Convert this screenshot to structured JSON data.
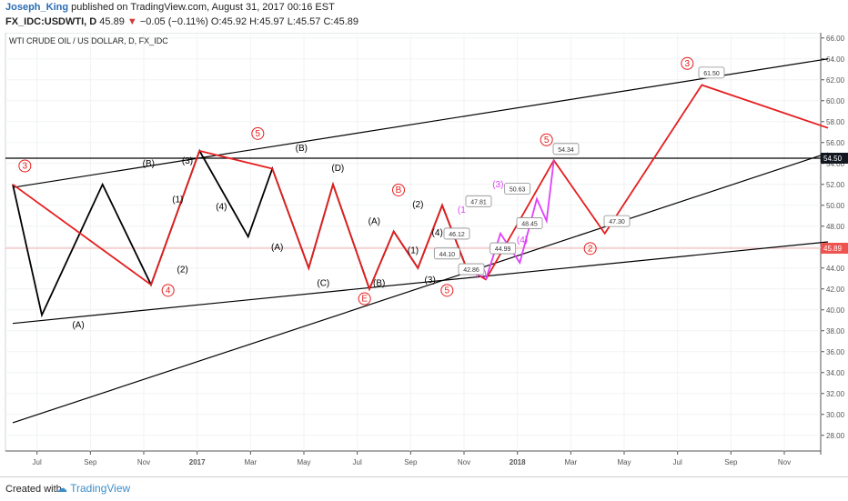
{
  "header": {
    "author": "Joseph_King",
    "published": "published on TradingView.com, August 31, 2017 00:16 EST",
    "symbol": "FX_IDC:USDWTI, D",
    "last": "45.89",
    "change_arrow": "▼",
    "change": "−0.05 (−0.11%)",
    "ohlc": "O:45.92 H:45.97 L:45.57 C:45.89"
  },
  "chart_data": {
    "type": "line",
    "title": "WTI CRUDE OIL / US DOLLAR, D, FX_IDC",
    "xlabel": "",
    "ylabel": "",
    "x_ticks": [
      "Jul",
      "Sep",
      "Nov",
      "2017",
      "Mar",
      "May",
      "Jul",
      "Sep",
      "Nov",
      "2018",
      "Mar",
      "May",
      "Jul",
      "Sep",
      "Nov"
    ],
    "y_ticks": [
      "66.00",
      "64.00",
      "62.00",
      "60.00",
      "58.00",
      "56.00",
      "54.00",
      "52.00",
      "50.00",
      "48.00",
      "46.00",
      "44.00",
      "42.00",
      "40.00",
      "38.00",
      "36.00",
      "34.00",
      "32.00",
      "30.00",
      "28.00"
    ],
    "ylim": [
      26.5,
      66.5
    ],
    "price_labels": [
      {
        "value": 54.5,
        "text": "54.50",
        "color": "#131722"
      },
      {
        "value": 45.89,
        "text": "45.89",
        "color": "#ef5350"
      }
    ],
    "horizontal_line": 54.5,
    "current_price": 45.89,
    "series": [
      {
        "color": "#000000",
        "points": [
          [
            0,
            52
          ],
          [
            1.2,
            39.5
          ],
          [
            3.7,
            52
          ],
          [
            5.7,
            42.4
          ],
          [
            7.7,
            55.2
          ],
          [
            9.7,
            47
          ],
          [
            10.7,
            53.5
          ],
          [
            12.2,
            44
          ],
          [
            13.2,
            52
          ],
          [
            14.7,
            42
          ],
          [
            15.7,
            47.5
          ],
          [
            16.7,
            44
          ],
          [
            17.7,
            50
          ],
          [
            18.7,
            44
          ]
        ]
      },
      {
        "color": "#e51e1e",
        "points": [
          [
            0,
            52
          ],
          [
            5.7,
            42.4
          ],
          [
            7.7,
            55.2
          ],
          [
            10.7,
            53.5
          ],
          [
            12.2,
            44
          ],
          [
            13.2,
            52
          ],
          [
            14.7,
            42
          ],
          [
            15.7,
            47.5
          ],
          [
            16.7,
            44
          ],
          [
            17.7,
            50
          ],
          [
            18.7,
            44
          ],
          [
            19.5,
            42.9
          ],
          [
            22.3,
            54.3
          ],
          [
            24.4,
            47.3
          ],
          [
            28.4,
            61.5
          ],
          [
            33.6,
            57.4
          ]
        ]
      },
      {
        "color": "#e040fb",
        "points": [
          [
            19.5,
            42.9
          ],
          [
            20.1,
            47.3
          ],
          [
            20.9,
            44.5
          ],
          [
            21.6,
            50.6
          ],
          [
            22.0,
            48.5
          ],
          [
            22.3,
            54.3
          ]
        ]
      }
    ],
    "trendlines": [
      {
        "points": [
          [
            0,
            51.7
          ],
          [
            33.6,
            64
          ]
        ]
      },
      {
        "points": [
          [
            0,
            38.7
          ],
          [
            33.6,
            46.5
          ]
        ]
      },
      {
        "points": [
          [
            0,
            29.2
          ],
          [
            33.6,
            55
          ]
        ]
      }
    ],
    "wave_labels": [
      {
        "text": "3",
        "x": 0.5,
        "y": 53.5,
        "color": "#e51e1e",
        "circle": true
      },
      {
        "text": "(A)",
        "x": 2.7,
        "y": 38.3,
        "color": "#000000"
      },
      {
        "text": "(B)",
        "x": 5.6,
        "y": 53.7,
        "color": "#000000"
      },
      {
        "text": "(1)",
        "x": 6.8,
        "y": 50.3,
        "color": "#000000"
      },
      {
        "text": "(2)",
        "x": 7.0,
        "y": 43.6,
        "color": "#000000"
      },
      {
        "text": "4",
        "x": 6.4,
        "y": 41.6,
        "color": "#e51e1e",
        "circle": true
      },
      {
        "text": "(3)",
        "x": 7.2,
        "y": 54.0,
        "color": "#000000"
      },
      {
        "text": "(4)",
        "x": 8.6,
        "y": 49.6,
        "color": "#000000"
      },
      {
        "text": "5",
        "x": 10.1,
        "y": 56.6,
        "color": "#e51e1e",
        "circle": true
      },
      {
        "text": "(A)",
        "x": 10.9,
        "y": 45.7,
        "color": "#000000"
      },
      {
        "text": "(B)",
        "x": 11.9,
        "y": 55.2,
        "color": "#000000"
      },
      {
        "text": "(C)",
        "x": 12.8,
        "y": 42.3,
        "color": "#000000"
      },
      {
        "text": "(D)",
        "x": 13.4,
        "y": 53.3,
        "color": "#000000"
      },
      {
        "text": "(A)",
        "x": 14.9,
        "y": 48.2,
        "color": "#000000"
      },
      {
        "text": "(B)",
        "x": 15.1,
        "y": 42.3,
        "color": "#000000"
      },
      {
        "text": "E",
        "x": 14.5,
        "y": 40.8,
        "color": "#e51e1e",
        "circle": true
      },
      {
        "text": "B",
        "x": 15.9,
        "y": 51.2,
        "color": "#e51e1e",
        "circle": true
      },
      {
        "text": "(2)",
        "x": 16.7,
        "y": 49.8,
        "color": "#000000"
      },
      {
        "text": "(1)",
        "x": 16.5,
        "y": 45.4,
        "color": "#000000"
      },
      {
        "text": "(4)",
        "x": 17.5,
        "y": 47.1,
        "color": "#000000"
      },
      {
        "text": "(3)",
        "x": 17.2,
        "y": 42.6,
        "color": "#000000"
      },
      {
        "text": "5",
        "x": 17.9,
        "y": 41.6,
        "color": "#e51e1e",
        "circle": true
      },
      {
        "text": "(1",
        "x": 18.5,
        "y": 49.3,
        "color": "#e040fb"
      },
      {
        "text": "(2)",
        "x": 19.3,
        "y": 43.2,
        "color": "#e040fb"
      },
      {
        "text": "(3)",
        "x": 20.0,
        "y": 51.7,
        "color": "#e040fb"
      },
      {
        "text": "(4)",
        "x": 21.0,
        "y": 46.4,
        "color": "#e040fb"
      },
      {
        "text": "5",
        "x": 22.0,
        "y": 56.0,
        "color": "#e51e1e",
        "circle": true
      },
      {
        "text": "2",
        "x": 23.8,
        "y": 45.6,
        "color": "#e51e1e",
        "circle": true
      },
      {
        "text": "3",
        "x": 27.8,
        "y": 63.3,
        "color": "#e51e1e",
        "circle": true
      }
    ],
    "price_callouts": [
      {
        "text": "61.50",
        "x": 28.8,
        "y": 62.6
      },
      {
        "text": "54.34",
        "x": 22.8,
        "y": 55.3
      },
      {
        "text": "50.63",
        "x": 20.8,
        "y": 51.5
      },
      {
        "text": "48.45",
        "x": 21.3,
        "y": 48.2
      },
      {
        "text": "47.81",
        "x": 19.2,
        "y": 50.3
      },
      {
        "text": "47.30",
        "x": 24.9,
        "y": 48.4
      },
      {
        "text": "46.12",
        "x": 18.3,
        "y": 47.2
      },
      {
        "text": "44.99",
        "x": 20.2,
        "y": 45.8
      },
      {
        "text": "44.10",
        "x": 17.9,
        "y": 45.3
      },
      {
        "text": "42.86",
        "x": 18.9,
        "y": 43.8
      }
    ]
  },
  "footer": {
    "created_with": "Created with",
    "brand": "TradingView"
  }
}
